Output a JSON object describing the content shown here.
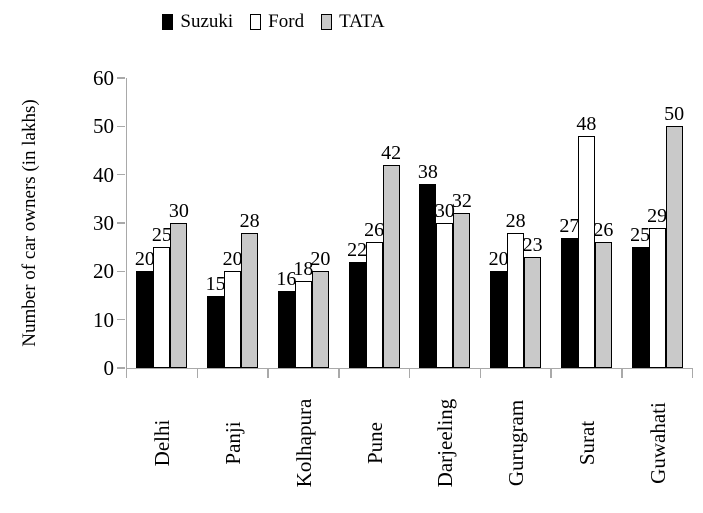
{
  "chart_data": {
    "type": "bar",
    "title": "",
    "ylabel": "Number of car owners (in lakhs)",
    "xlabel": "",
    "ylim": [
      0,
      60
    ],
    "yticks": [
      0,
      10,
      20,
      30,
      40,
      50,
      60
    ],
    "categories": [
      "Delhi",
      "Panji",
      "Kolhapura",
      "Pune",
      "Darjeeling",
      "Gurugram",
      "Surat",
      "Guwahati"
    ],
    "series": [
      {
        "name": "Suzuki",
        "color": "#000000",
        "values": [
          20,
          15,
          16,
          22,
          38,
          20,
          27,
          25
        ]
      },
      {
        "name": "Ford",
        "color": "#ffffff",
        "values": [
          25,
          20,
          18,
          26,
          30,
          28,
          48,
          29
        ]
      },
      {
        "name": "TATA",
        "color": "#c9c9c9",
        "values": [
          30,
          28,
          20,
          42,
          32,
          23,
          26,
          50
        ]
      }
    ],
    "legend_position": "top",
    "grid": false,
    "data_labels": true,
    "axis_color": "#a9a9a9",
    "bar_border_color": "#000000",
    "text_color": "#000000"
  }
}
